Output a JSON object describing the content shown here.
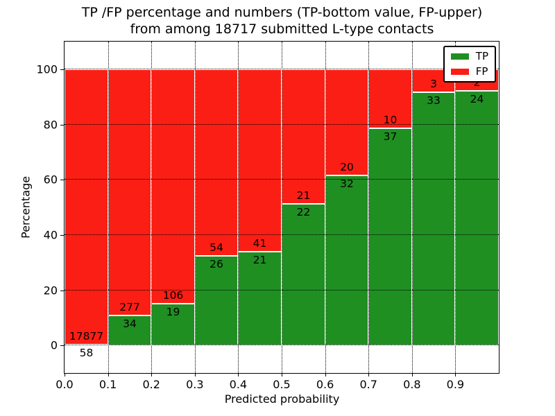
{
  "title": {
    "line1": "TP /FP percentage and numbers (TP-bottom value, FP-upper)",
    "line2": "from among 18717 submitted L-type contacts"
  },
  "axes": {
    "xlabel": "Predicted probability",
    "ylabel": "Percentage",
    "x_ticks": [
      "0.0",
      "0.1",
      "0.2",
      "0.3",
      "0.4",
      "0.5",
      "0.6",
      "0.7",
      "0.8",
      "0.9"
    ],
    "y_ticks": [
      "0",
      "20",
      "40",
      "60",
      "80",
      "100"
    ]
  },
  "legend": {
    "items": [
      {
        "label": "TP",
        "color": "#1f8f22"
      },
      {
        "label": "FP",
        "color": "#fb1e14"
      }
    ]
  },
  "chart_data": {
    "type": "bar",
    "stacked": true,
    "title": "TP /FP percentage and numbers (TP-bottom value, FP-upper) from among 18717 submitted L-type contacts",
    "xlabel": "Predicted probability",
    "ylabel": "Percentage",
    "total_contacts": 18717,
    "x_bin_edges": [
      0.0,
      0.1,
      0.2,
      0.3,
      0.4,
      0.5,
      0.6,
      0.7,
      0.8,
      0.9,
      1.0
    ],
    "series": [
      {
        "name": "TP",
        "stack_position": "bottom",
        "color": "#1f8f22",
        "counts": [
          58,
          34,
          19,
          26,
          21,
          22,
          32,
          37,
          33,
          24
        ]
      },
      {
        "name": "FP",
        "stack_position": "top",
        "color": "#fb1e14",
        "counts": [
          17877,
          277,
          106,
          54,
          41,
          21,
          20,
          10,
          3,
          2
        ]
      }
    ],
    "tp_percent": [
      0.32,
      10.93,
      15.2,
      32.5,
      33.87,
      51.16,
      61.54,
      78.72,
      91.67,
      92.31
    ],
    "fp_percent": [
      99.68,
      89.07,
      84.8,
      67.5,
      66.13,
      48.84,
      38.46,
      21.28,
      8.33,
      7.69
    ],
    "xlim": [
      0.0,
      1.0
    ],
    "ylim": [
      -10,
      110
    ],
    "grid": "dotted",
    "legend_position": "upper right"
  }
}
